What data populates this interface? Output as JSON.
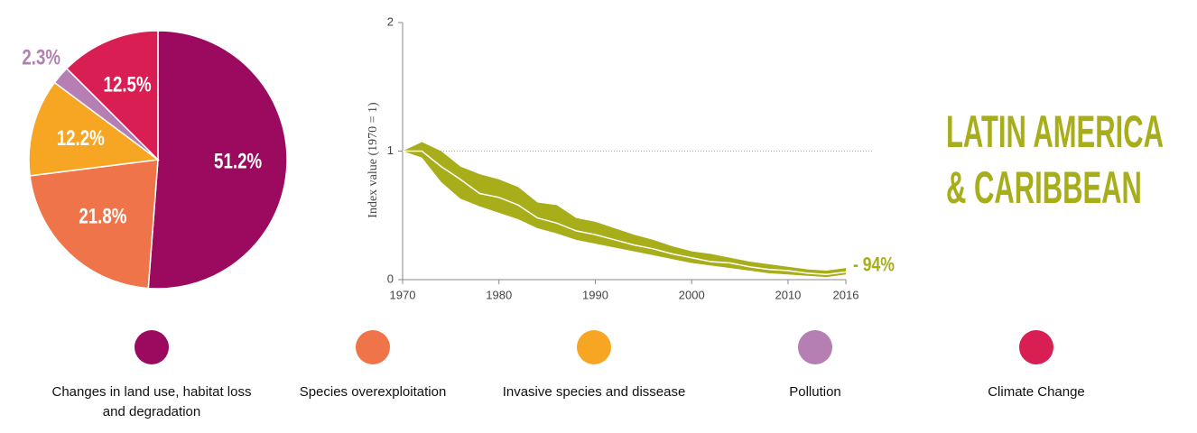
{
  "chart_data": [
    {
      "type": "pie",
      "categories": [
        "Changes in land use, habitat loss and degradation",
        "Species overexploitation",
        "Invasive species and dissease",
        "Pollution",
        "Climate Change"
      ],
      "values": [
        51.2,
        21.8,
        12.2,
        2.3,
        12.5
      ],
      "value_labels": [
        "51.2%",
        "21.8%",
        "12.2%",
        "2.3%",
        "12.5%"
      ],
      "colors": [
        "#9b0a5f",
        "#f07449",
        "#f6a623",
        "#b57fb3",
        "#d81e53"
      ]
    },
    {
      "type": "line",
      "ylabel": "Index value (1970 = 1)",
      "annotation": "- 94%",
      "x": [
        1970,
        1972,
        1974,
        1976,
        1978,
        1980,
        1982,
        1984,
        1986,
        1988,
        1990,
        1992,
        1994,
        1996,
        1998,
        2000,
        2002,
        2004,
        2006,
        2008,
        2010,
        2012,
        2014,
        2016
      ],
      "series": [
        {
          "color": "#a8ad1a",
          "values": [
            1,
            1.0,
            0.88,
            0.78,
            0.67,
            0.64,
            0.58,
            0.48,
            0.44,
            0.38,
            0.35,
            0.31,
            0.27,
            0.24,
            0.2,
            0.17,
            0.14,
            0.13,
            0.1,
            0.08,
            0.07,
            0.05,
            0.04,
            0.06
          ],
          "upper": [
            1,
            1.07,
            1.0,
            0.88,
            0.82,
            0.78,
            0.72,
            0.6,
            0.58,
            0.48,
            0.45,
            0.4,
            0.35,
            0.31,
            0.26,
            0.22,
            0.2,
            0.17,
            0.14,
            0.12,
            0.1,
            0.08,
            0.07,
            0.09
          ],
          "lower": [
            1,
            0.95,
            0.76,
            0.63,
            0.57,
            0.52,
            0.47,
            0.4,
            0.36,
            0.31,
            0.28,
            0.25,
            0.22,
            0.19,
            0.16,
            0.13,
            0.11,
            0.09,
            0.07,
            0.05,
            0.04,
            0.03,
            0.02,
            0.04
          ]
        }
      ],
      "xlim": [
        1970,
        2016
      ],
      "xticks": [
        1970,
        1980,
        1990,
        2000,
        2010,
        2016
      ],
      "ylim": [
        0,
        2
      ],
      "yticks": [
        0,
        1,
        2
      ],
      "reference_line": 1
    }
  ],
  "heading": {
    "lines": [
      "LATIN AMERICA",
      "& CARIBBEAN"
    ]
  }
}
